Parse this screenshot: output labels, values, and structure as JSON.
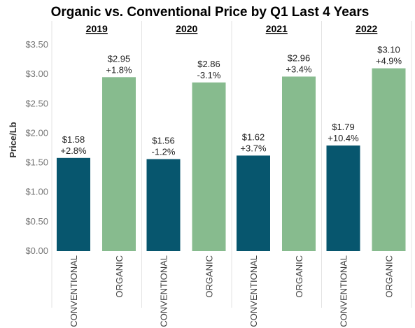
{
  "chart_data": {
    "type": "bar",
    "title": "Organic vs. Conventional Price by Q1 Last 4 Years",
    "ylabel": "Price/Lb",
    "ylim": [
      0,
      3.5
    ],
    "yticks": [
      "$0.00",
      "$0.50",
      "$1.00",
      "$1.50",
      "$2.00",
      "$2.50",
      "$3.00",
      "$3.50"
    ],
    "grid": false,
    "colors": {
      "CONVENTIONAL": "#07566e",
      "ORGANIC": "#87bb8e"
    },
    "groups": [
      {
        "year": "2019",
        "bars": [
          {
            "category": "CONVENTIONAL",
            "value": 1.58,
            "label": "$1.58",
            "change": "+2.8%"
          },
          {
            "category": "ORGANIC",
            "value": 2.95,
            "label": "$2.95",
            "change": "+1.8%"
          }
        ]
      },
      {
        "year": "2020",
        "bars": [
          {
            "category": "CONVENTIONAL",
            "value": 1.56,
            "label": "$1.56",
            "change": "-1.2%"
          },
          {
            "category": "ORGANIC",
            "value": 2.86,
            "label": "$2.86",
            "change": "-3.1%"
          }
        ]
      },
      {
        "year": "2021",
        "bars": [
          {
            "category": "CONVENTIONAL",
            "value": 1.62,
            "label": "$1.62",
            "change": "+3.7%"
          },
          {
            "category": "ORGANIC",
            "value": 2.96,
            "label": "$2.96",
            "change": "+3.4%"
          }
        ]
      },
      {
        "year": "2022",
        "bars": [
          {
            "category": "CONVENTIONAL",
            "value": 1.79,
            "label": "$1.79",
            "change": "+10.4%"
          },
          {
            "category": "ORGANIC",
            "value": 3.1,
            "label": "$3.10",
            "change": "+4.9%"
          }
        ]
      }
    ]
  }
}
